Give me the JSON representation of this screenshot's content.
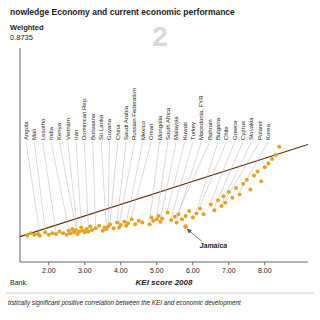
{
  "chart_data": {
    "type": "scatter",
    "title": "nowledge Economy and current economic performance",
    "x_label": "KEI score 2008",
    "color": "#E8A020",
    "xlim": [
      1.2,
      9.2
    ],
    "ylim": [
      -30,
      230
    ],
    "xticks": [
      {
        "value": 2.0,
        "label": "2.00"
      },
      {
        "value": 3.0,
        "label": "3.00"
      },
      {
        "value": 4.0,
        "label": "4.00"
      },
      {
        "value": 5.0,
        "label": "5.00"
      },
      {
        "value": 6.0,
        "label": "6.00"
      },
      {
        "value": 7.0,
        "label": "7.00"
      },
      {
        "value": 8.0,
        "label": "8.00"
      }
    ],
    "tick_labels": "x",
    "grid": false,
    "x": [
      1.4,
      1.5,
      1.6,
      1.7,
      1.75,
      1.9,
      2.0,
      2.1,
      2.2,
      2.3,
      2.4,
      2.5,
      2.55,
      2.6,
      2.65,
      2.7,
      2.75,
      2.8,
      2.85,
      2.9,
      2.95,
      3.0,
      3.05,
      3.1,
      3.15,
      3.2,
      3.3,
      3.4,
      3.5,
      3.55,
      3.6,
      3.65,
      3.7,
      3.8,
      3.9,
      3.95,
      4.0,
      4.1,
      4.15,
      4.2,
      4.3,
      4.4,
      4.5,
      4.6,
      4.8,
      4.85,
      4.9,
      5.0,
      5.05,
      5.1,
      5.15,
      5.3,
      5.4,
      5.5,
      5.55,
      5.6,
      5.7,
      5.8,
      5.9,
      6.0,
      6.1,
      6.2,
      6.3,
      6.5,
      6.6,
      6.7,
      6.8,
      6.85,
      6.9,
      7.0,
      7.1,
      7.2,
      7.3,
      7.4,
      7.5,
      7.6,
      7.7,
      7.8,
      7.9,
      8.0,
      8.1,
      8.2,
      8.3,
      8.4
    ],
    "values": [
      2,
      5,
      3,
      4,
      2,
      6,
      3,
      5,
      4,
      7,
      5,
      3,
      8,
      5,
      10,
      6,
      9,
      4,
      7,
      12,
      8,
      6,
      10,
      7,
      13,
      9,
      11,
      14,
      8,
      12,
      10,
      13,
      16,
      11,
      18,
      12,
      15,
      19,
      14,
      17,
      22,
      16,
      20,
      18,
      16,
      24,
      20,
      22,
      26,
      19,
      23,
      30,
      21,
      25,
      18,
      28,
      22,
      26,
      32,
      24,
      29,
      35,
      28,
      40,
      33,
      45,
      38,
      50,
      42,
      55,
      48,
      60,
      52,
      65,
      70,
      58,
      75,
      80,
      68,
      85,
      90,
      95,
      100,
      110
    ],
    "labels": [
      null,
      null,
      null,
      null,
      "Angola",
      "Mali",
      null,
      null,
      "Lesotho",
      null,
      null,
      null,
      "India",
      null,
      null,
      null,
      "Kenya",
      "Vietnam",
      null,
      "Iran",
      null,
      null,
      null,
      "Dominican Rep.",
      null,
      null,
      "Botswana",
      null,
      null,
      null,
      "Sri Lanka",
      "Guyana",
      "China",
      null,
      "Saudi Arabia",
      "Russian Federation",
      null,
      null,
      "Mexico",
      null,
      "Oman",
      null,
      null,
      null,
      "Mongolia",
      null,
      null,
      "South Africa",
      null,
      "Malaysia",
      null,
      "Kuwait",
      "Turkey",
      null,
      "Macedonia, FYR",
      "Bahrain",
      null,
      null,
      null,
      null,
      "Bulgaria",
      "Chile",
      null,
      "Greece",
      "Cyprus",
      null,
      "Slovakia",
      null,
      "Poland",
      null,
      null,
      null,
      "Korea",
      null,
      null,
      null,
      null,
      null,
      null,
      null,
      null,
      null,
      null,
      null
    ],
    "trendline": {
      "x": [
        1.2,
        9.2
      ],
      "values": [
        0.8,
        112.8
      ],
      "color": "#5C2A0A"
    },
    "annotations": [
      {
        "text": "Jamaica",
        "x": 5.8,
        "y": 13
      },
      {
        "text": "Weighted"
      },
      {
        "text": "0.8735"
      },
      {
        "text": "2"
      },
      {
        "text": "Bank."
      },
      {
        "text": "tistically significant positive correlation between the KEI and economic development"
      }
    ]
  }
}
